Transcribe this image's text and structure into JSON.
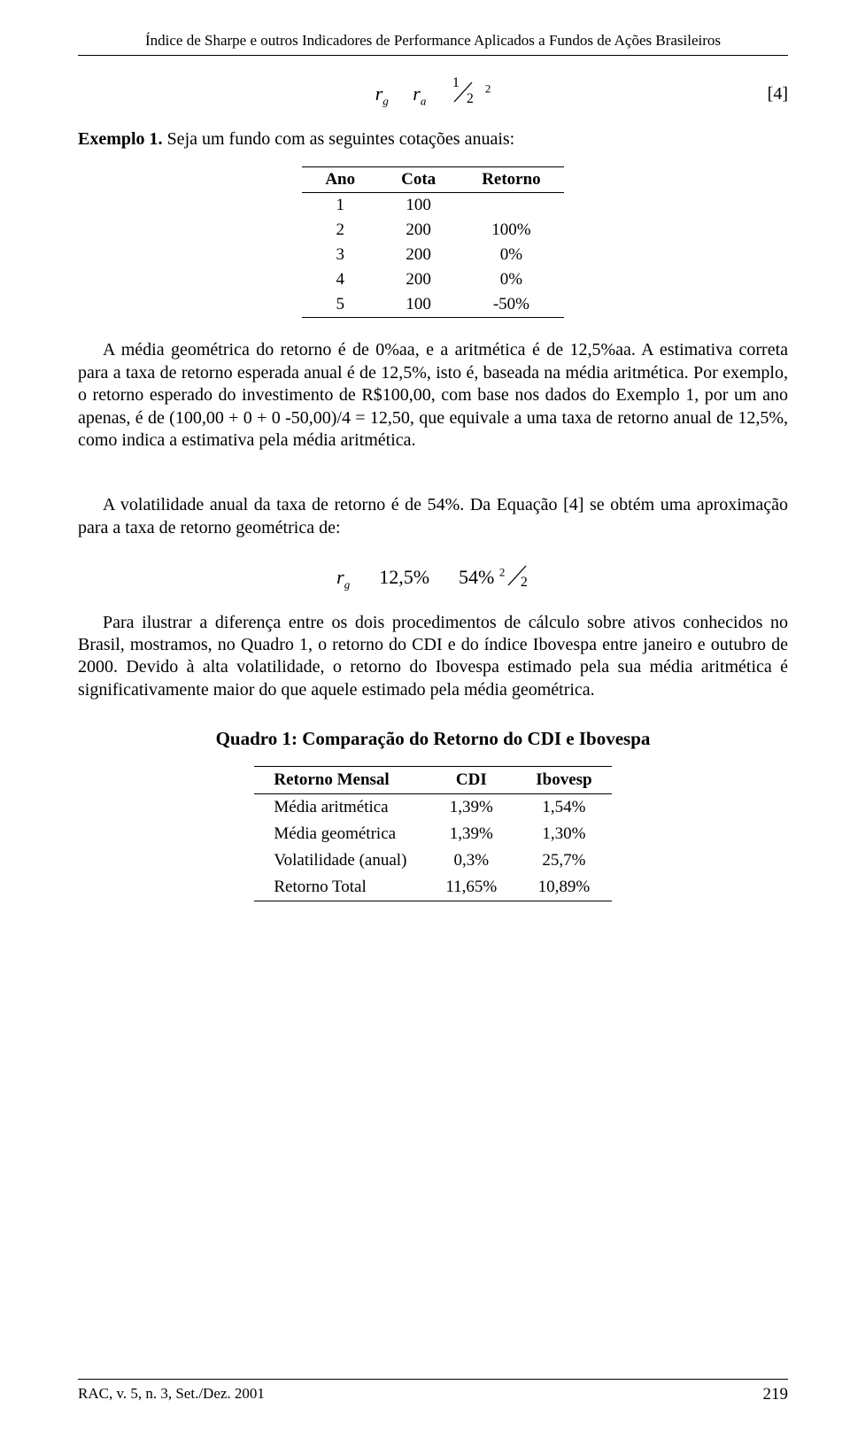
{
  "header": {
    "running_head": "Índice de Sharpe e outros Indicadores de Performance Aplicados a Fundos de Ações Brasileiros"
  },
  "eq1": {
    "lhs": "r",
    "lhs_sub": "g",
    "rhs_term": "r",
    "rhs_sub": "a",
    "frac_num": "1",
    "frac_den": "2",
    "exponent": "2",
    "tag": "[4]"
  },
  "example": {
    "label": "Exemplo 1.",
    "text": "Seja um fundo com as seguintes cotações anuais:"
  },
  "table1": {
    "columns": [
      "Ano",
      "Cota",
      "Retorno"
    ],
    "rows": [
      [
        "1",
        "100",
        ""
      ],
      [
        "2",
        "200",
        "100%"
      ],
      [
        "3",
        "200",
        "0%"
      ],
      [
        "4",
        "200",
        "0%"
      ],
      [
        "5",
        "100",
        "-50%"
      ]
    ]
  },
  "body": {
    "p1": "A média geométrica do retorno é de 0%aa, e a aritmética é de 12,5%aa. A estimativa correta para a taxa de retorno esperada anual é de 12,5%, isto é, baseada na média aritmética. Por exemplo, o retorno esperado do investimento de R$100,00, com base nos dados do Exemplo 1, por um ano apenas, é de (100,00 + 0 + 0 -50,00)/4 = 12,50, que equivale a uma taxa de retorno anual de 12,5%, como indica a estimativa pela média aritmética.",
    "p2": "A volatilidade anual da taxa de retorno é de 54%. Da Equação [4] se obtém uma aproximação para a taxa de retorno geométrica de:",
    "p3": "Para ilustrar a diferença entre os dois procedimentos de cálculo sobre ativos conhecidos no Brasil, mostramos, no Quadro 1, o retorno do CDI e do índice Ibovespa entre janeiro e outubro de 2000. Devido à alta volatilidade, o retorno do Ibovespa estimado pela sua média aritmética é significativamente maior do que aquele estimado pela média geométrica."
  },
  "eq2": {
    "lhs": "r",
    "lhs_sub": "g",
    "a": "12,5%",
    "squared_term": "54%",
    "frac_num": "2",
    "frac_den": "2"
  },
  "quadro": {
    "title": "Quadro 1: Comparação do Retorno do CDI e Ibovespa"
  },
  "table2": {
    "columns": [
      "Retorno Mensal",
      "CDI",
      "Ibovesp"
    ],
    "rows": [
      [
        "Média aritmética",
        "1,39%",
        "1,54%"
      ],
      [
        "Média geométrica",
        "1,39%",
        "1,30%"
      ],
      [
        "Volatilidade (anual)",
        "0,3%",
        "25,7%"
      ],
      [
        "Retorno Total",
        "11,65%",
        "10,89%"
      ]
    ]
  },
  "footer": {
    "left": "RAC, v. 5, n. 3, Set./Dez. 2001",
    "page": "219"
  }
}
